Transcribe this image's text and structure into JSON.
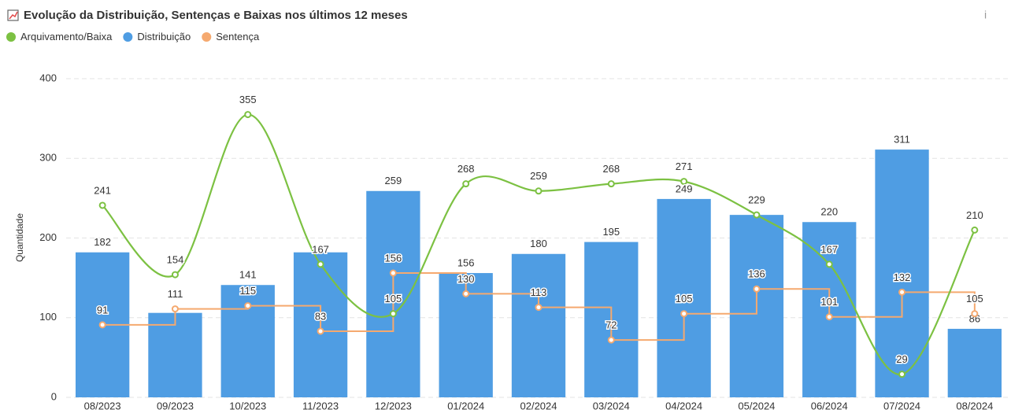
{
  "chart_data": {
    "type": "combo",
    "title": "Evolução da Distribuição, Sentenças e Baixas nos últimos 12 meses",
    "info": "i",
    "y_label": "Quantidade",
    "categories": [
      "08/2023",
      "09/2023",
      "10/2023",
      "11/2023",
      "12/2023",
      "01/2024",
      "02/2024",
      "03/2024",
      "04/2024",
      "05/2024",
      "06/2024",
      "07/2024",
      "08/2024"
    ],
    "ylim": [
      0,
      400
    ],
    "yticks": [
      0,
      100,
      200,
      300,
      400
    ],
    "grid": true,
    "series": [
      {
        "name": "Arquivamento/Baixa",
        "color": "#7cc142",
        "kind": "smooth-line",
        "values": [
          241,
          154,
          355,
          167,
          105,
          268,
          259,
          268,
          271,
          229,
          167,
          29,
          210
        ]
      },
      {
        "name": "Distribuição",
        "color": "#4f9de3",
        "kind": "bar",
        "values": [
          182,
          106,
          141,
          182,
          259,
          156,
          180,
          195,
          249,
          229,
          220,
          311,
          86
        ],
        "value_labels": [
          "182",
          null,
          "141",
          null,
          "259",
          "156",
          "180",
          "195",
          "249",
          null,
          "220",
          "311",
          "86"
        ]
      },
      {
        "name": "Sentença",
        "color": "#f5a96f",
        "kind": "step-line",
        "values": [
          91,
          111,
          115,
          83,
          156,
          130,
          113,
          72,
          105,
          136,
          101,
          132,
          105
        ]
      }
    ]
  }
}
